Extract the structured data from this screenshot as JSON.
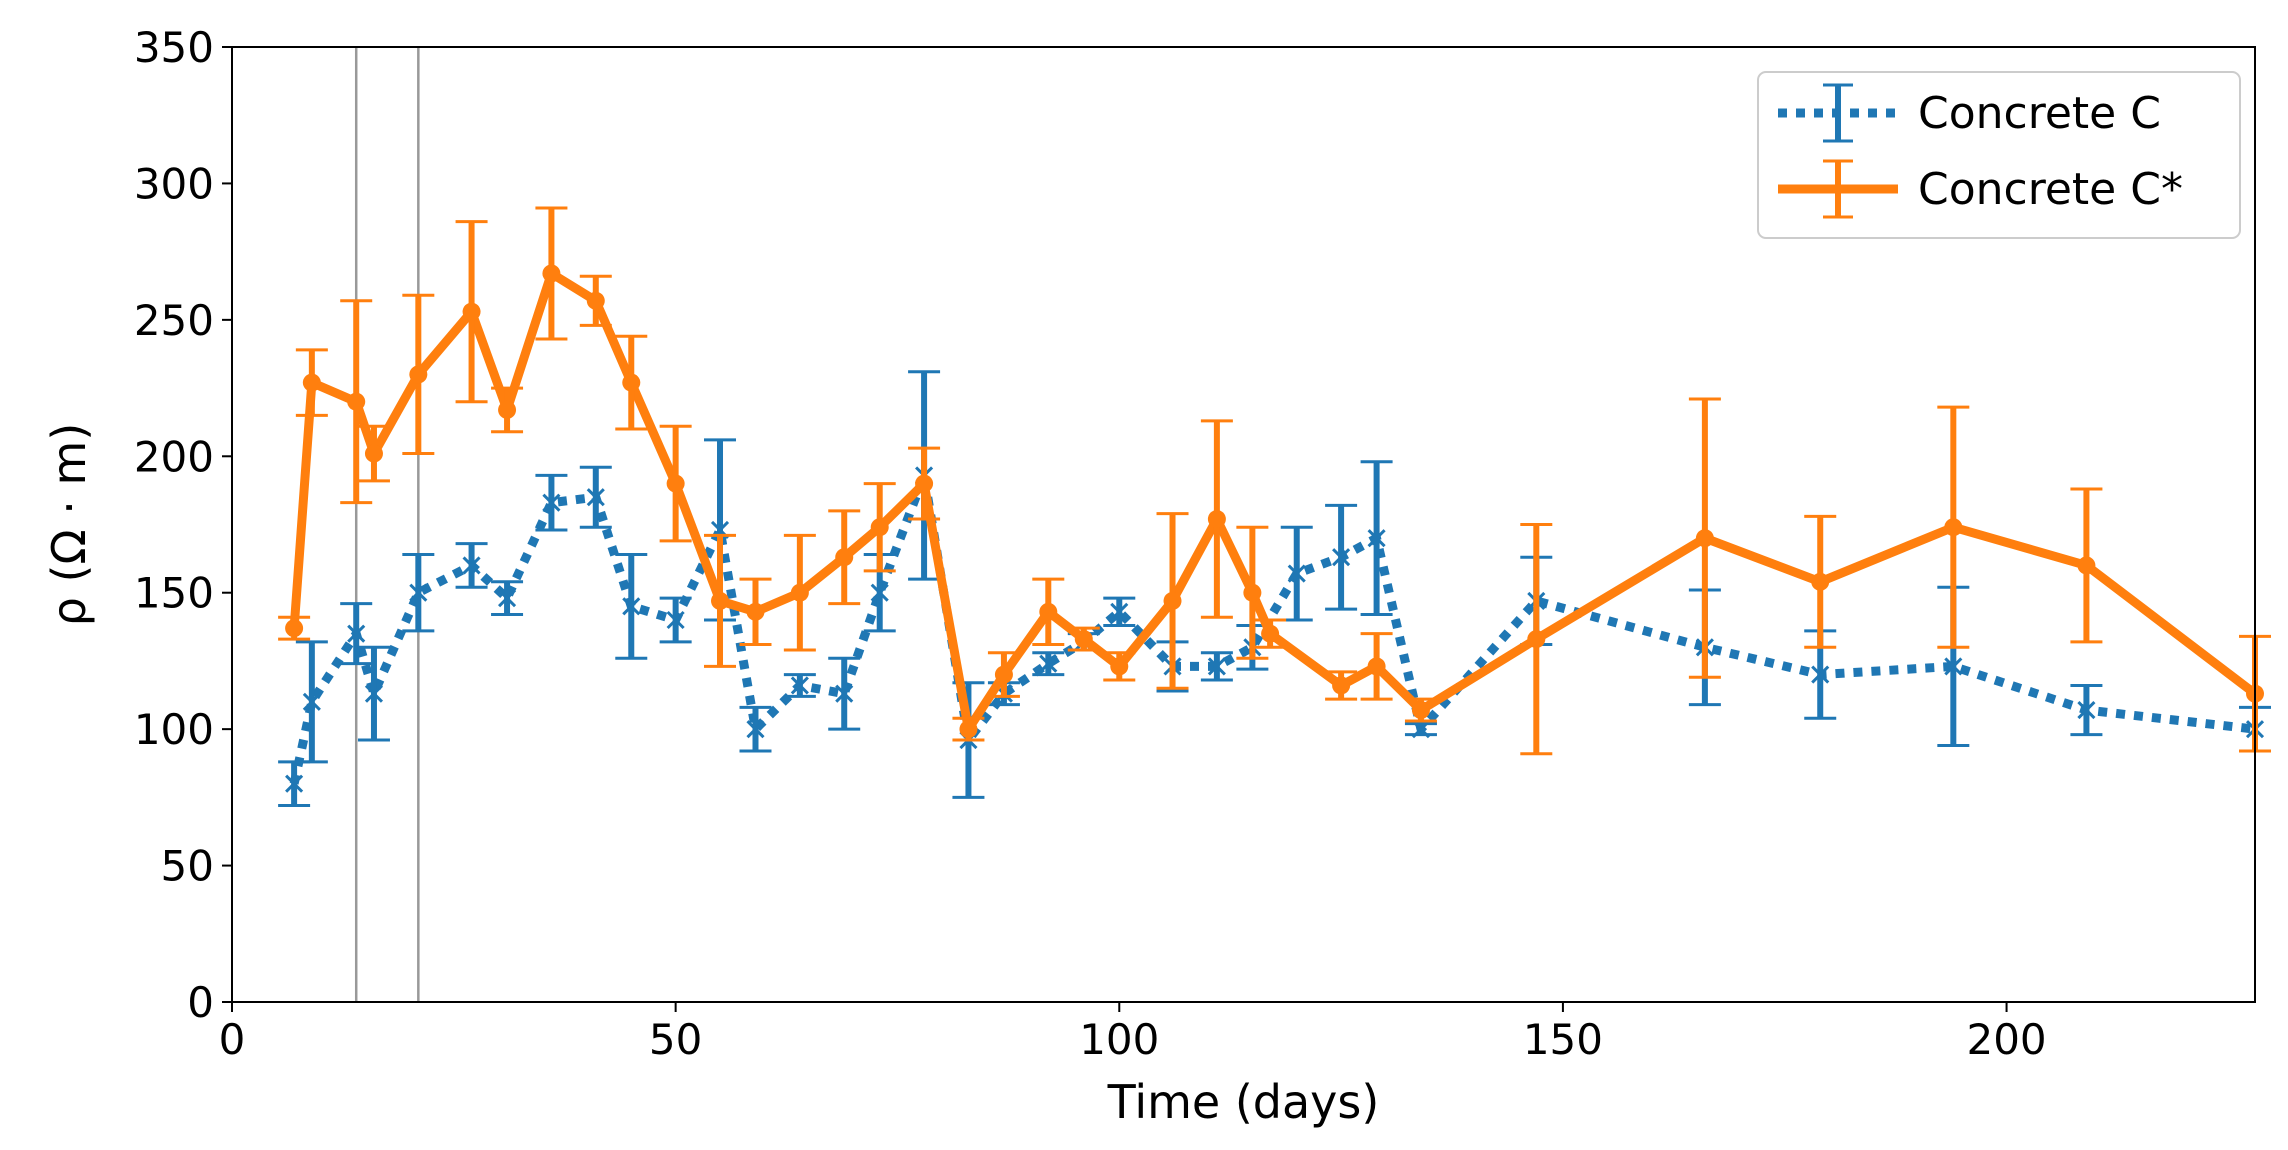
{
  "chart_data": {
    "type": "line",
    "xlabel": "Time (days)",
    "ylabel": "ρ (Ω · m)",
    "xlim": [
      0,
      228
    ],
    "ylim": [
      0,
      350
    ],
    "xticks": [
      0,
      50,
      100,
      150,
      200
    ],
    "yticks": [
      0,
      50,
      100,
      150,
      200,
      250,
      300,
      350
    ],
    "vlines": [
      14,
      21
    ],
    "legend_position": "top-right",
    "series": [
      {
        "name": "Concrete C",
        "color": "#1f77b4",
        "style": "dotted",
        "marker": "x",
        "points": [
          {
            "x": 7,
            "y": 80,
            "err": 8
          },
          {
            "x": 9,
            "y": 110,
            "err": 22
          },
          {
            "x": 14,
            "y": 135,
            "err": 11
          },
          {
            "x": 16,
            "y": 113,
            "err": 17
          },
          {
            "x": 21,
            "y": 150,
            "err": 14
          },
          {
            "x": 27,
            "y": 160,
            "err": 8
          },
          {
            "x": 31,
            "y": 148,
            "err": 6
          },
          {
            "x": 36,
            "y": 183,
            "err": 10
          },
          {
            "x": 41,
            "y": 185,
            "err": 11
          },
          {
            "x": 45,
            "y": 145,
            "err": 19
          },
          {
            "x": 50,
            "y": 140,
            "err": 8
          },
          {
            "x": 55,
            "y": 173,
            "err": 33
          },
          {
            "x": 59,
            "y": 100,
            "err": 8
          },
          {
            "x": 64,
            "y": 116,
            "err": 4
          },
          {
            "x": 69,
            "y": 113,
            "err": 13
          },
          {
            "x": 73,
            "y": 150,
            "err": 14
          },
          {
            "x": 78,
            "y": 193,
            "err": 38
          },
          {
            "x": 83,
            "y": 96,
            "err": 21
          },
          {
            "x": 87,
            "y": 113,
            "err": 4
          },
          {
            "x": 92,
            "y": 124,
            "err": 4
          },
          {
            "x": 96,
            "y": 132,
            "err": 3
          },
          {
            "x": 100,
            "y": 143,
            "err": 5
          },
          {
            "x": 106,
            "y": 123,
            "err": 9
          },
          {
            "x": 111,
            "y": 123,
            "err": 5
          },
          {
            "x": 115,
            "y": 130,
            "err": 8
          },
          {
            "x": 120,
            "y": 157,
            "err": 17
          },
          {
            "x": 125,
            "y": 163,
            "err": 19
          },
          {
            "x": 129,
            "y": 170,
            "err": 28
          },
          {
            "x": 134,
            "y": 100,
            "err": 2
          },
          {
            "x": 147,
            "y": 147,
            "err": 16
          },
          {
            "x": 166,
            "y": 130,
            "err": 21
          },
          {
            "x": 179,
            "y": 120,
            "err": 16
          },
          {
            "x": 194,
            "y": 123,
            "err": 29
          },
          {
            "x": 209,
            "y": 107,
            "err": 9
          },
          {
            "x": 228,
            "y": 100,
            "err": 8
          }
        ]
      },
      {
        "name": "Concrete C*",
        "color": "#ff7f0e",
        "style": "solid",
        "marker": "o",
        "points": [
          {
            "x": 7,
            "y": 137,
            "err": 4
          },
          {
            "x": 9,
            "y": 227,
            "err": 12
          },
          {
            "x": 14,
            "y": 220,
            "err": 37
          },
          {
            "x": 16,
            "y": 201,
            "err": 10
          },
          {
            "x": 21,
            "y": 230,
            "err": 29
          },
          {
            "x": 27,
            "y": 253,
            "err": 33
          },
          {
            "x": 31,
            "y": 217,
            "err": 8
          },
          {
            "x": 36,
            "y": 267,
            "err": 24
          },
          {
            "x": 41,
            "y": 257,
            "err": 9
          },
          {
            "x": 45,
            "y": 227,
            "err": 17
          },
          {
            "x": 50,
            "y": 190,
            "err": 21
          },
          {
            "x": 55,
            "y": 147,
            "err": 24
          },
          {
            "x": 59,
            "y": 143,
            "err": 12
          },
          {
            "x": 64,
            "y": 150,
            "err": 21
          },
          {
            "x": 69,
            "y": 163,
            "err": 17
          },
          {
            "x": 73,
            "y": 174,
            "err": 16
          },
          {
            "x": 78,
            "y": 190,
            "err": 13
          },
          {
            "x": 83,
            "y": 100,
            "err": 4
          },
          {
            "x": 87,
            "y": 120,
            "err": 8
          },
          {
            "x": 92,
            "y": 143,
            "err": 12
          },
          {
            "x": 96,
            "y": 133,
            "err": 4
          },
          {
            "x": 100,
            "y": 123,
            "err": 5
          },
          {
            "x": 106,
            "y": 147,
            "err": 32
          },
          {
            "x": 111,
            "y": 177,
            "err": 36
          },
          {
            "x": 115,
            "y": 150,
            "err": 24
          },
          {
            "x": 117,
            "y": 135,
            "err": 5
          },
          {
            "x": 125,
            "y": 116,
            "err": 5
          },
          {
            "x": 129,
            "y": 123,
            "err": 12
          },
          {
            "x": 134,
            "y": 107,
            "err": 4
          },
          {
            "x": 147,
            "y": 133,
            "err": 42
          },
          {
            "x": 166,
            "y": 170,
            "err": 51
          },
          {
            "x": 179,
            "y": 154,
            "err": 24
          },
          {
            "x": 194,
            "y": 174,
            "err": 44
          },
          {
            "x": 209,
            "y": 160,
            "err": 28
          },
          {
            "x": 228,
            "y": 113,
            "err": 21
          }
        ]
      }
    ]
  }
}
